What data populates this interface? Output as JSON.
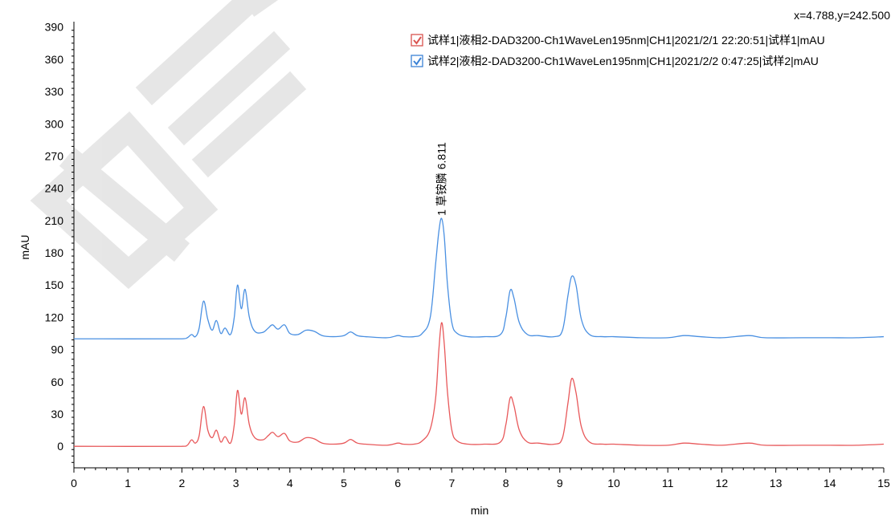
{
  "readout": "x=4.788,y=242.500",
  "colors": {
    "series1": "#e8585a",
    "series2": "#4a90e2",
    "axis": "#000000",
    "checkbox_red": "#d9534f",
    "checkbox_blue": "#3b82d6"
  },
  "chart_data": {
    "type": "line",
    "xlabel": "min",
    "ylabel": "mAU",
    "xlim": [
      0,
      15
    ],
    "ylim": [
      -20,
      395
    ],
    "x_ticks": [
      "0",
      "1",
      "2",
      "3",
      "4",
      "5",
      "6",
      "7",
      "8",
      "9",
      "10",
      "11",
      "12",
      "13",
      "14",
      "15"
    ],
    "y_ticks": [
      "0",
      "30",
      "60",
      "90",
      "120",
      "150",
      "180",
      "210",
      "240",
      "270",
      "300",
      "330",
      "360",
      "390"
    ],
    "grid": false,
    "legend_position": "top-right",
    "annotation": {
      "text": "1 草铵膦 6.811",
      "x": 6.811,
      "y": 213
    },
    "series": [
      {
        "name": "试样1|液相2-DAD3200-Ch1WaveLen195nm|CH1|2021/2/1 22:20:51|试样1|mAU",
        "checked": true,
        "color": "#e8585a",
        "x": [
          0.0,
          2.0,
          2.1,
          2.18,
          2.25,
          2.32,
          2.4,
          2.48,
          2.56,
          2.64,
          2.72,
          2.8,
          2.9,
          2.97,
          3.03,
          3.1,
          3.17,
          3.25,
          3.35,
          3.5,
          3.6,
          3.68,
          3.78,
          3.9,
          4.0,
          4.15,
          4.3,
          4.45,
          4.6,
          4.8,
          5.0,
          5.1,
          5.15,
          5.25,
          5.4,
          5.8,
          6.0,
          6.1,
          6.3,
          6.45,
          6.6,
          6.7,
          6.76,
          6.81,
          6.86,
          6.92,
          7.0,
          7.1,
          7.3,
          7.6,
          7.9,
          8.0,
          8.08,
          8.15,
          8.25,
          8.4,
          8.6,
          8.9,
          9.05,
          9.15,
          9.22,
          9.3,
          9.4,
          9.55,
          9.8,
          10.0,
          10.5,
          11.0,
          11.3,
          11.6,
          12.0,
          12.5,
          12.8,
          13.5,
          14.0,
          14.5,
          15.0
        ],
        "values": [
          0,
          0,
          1,
          6,
          3,
          10,
          37,
          15,
          8,
          15,
          4,
          9,
          3,
          20,
          52,
          30,
          45,
          20,
          8,
          6,
          10,
          13,
          9,
          12,
          5,
          4,
          8,
          7,
          3,
          2,
          3,
          6,
          6,
          3,
          2,
          1,
          3,
          2,
          2,
          5,
          16,
          45,
          90,
          115,
          95,
          50,
          15,
          5,
          2,
          2,
          4,
          20,
          45,
          38,
          15,
          4,
          3,
          2,
          8,
          40,
          63,
          50,
          18,
          4,
          2,
          2,
          1,
          1,
          3,
          2,
          1,
          3,
          1,
          1,
          1,
          1,
          2
        ]
      },
      {
        "name": "试样2|液相2-DAD3200-Ch1WaveLen195nm|CH1|2021/2/2 0:47:25|试样2|mAU",
        "checked": true,
        "color": "#4a90e2",
        "x": [
          0.0,
          2.0,
          2.1,
          2.18,
          2.25,
          2.32,
          2.4,
          2.48,
          2.56,
          2.64,
          2.72,
          2.8,
          2.9,
          2.97,
          3.03,
          3.1,
          3.17,
          3.25,
          3.35,
          3.5,
          3.6,
          3.68,
          3.78,
          3.9,
          4.0,
          4.15,
          4.3,
          4.45,
          4.6,
          4.8,
          5.0,
          5.1,
          5.15,
          5.25,
          5.4,
          5.8,
          6.0,
          6.1,
          6.3,
          6.45,
          6.6,
          6.7,
          6.76,
          6.81,
          6.86,
          6.92,
          7.0,
          7.1,
          7.3,
          7.6,
          7.9,
          8.0,
          8.08,
          8.15,
          8.25,
          8.4,
          8.6,
          8.9,
          9.05,
          9.15,
          9.22,
          9.3,
          9.4,
          9.55,
          9.8,
          10.0,
          10.5,
          11.0,
          11.3,
          11.6,
          12.0,
          12.5,
          12.8,
          13.5,
          14.0,
          14.5,
          15.0
        ],
        "values": [
          100,
          100,
          101,
          104,
          102,
          110,
          135,
          118,
          108,
          117,
          105,
          110,
          104,
          120,
          150,
          128,
          146,
          120,
          107,
          106,
          110,
          113,
          109,
          113,
          105,
          104,
          108,
          107,
          103,
          102,
          103,
          106,
          106,
          103,
          102,
          101,
          103,
          102,
          102,
          105,
          120,
          170,
          200,
          212,
          195,
          150,
          115,
          105,
          102,
          102,
          104,
          120,
          145,
          138,
          115,
          104,
          103,
          102,
          108,
          140,
          158,
          150,
          118,
          104,
          102,
          102,
          101,
          101,
          103,
          102,
          101,
          103,
          101,
          101,
          101,
          101,
          102
        ]
      }
    ]
  }
}
